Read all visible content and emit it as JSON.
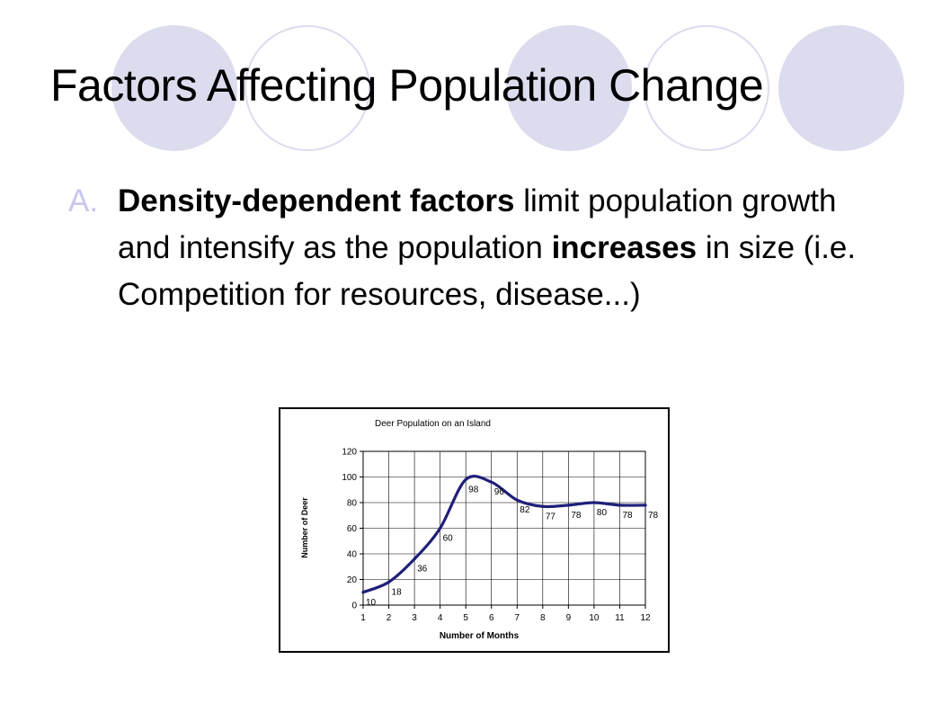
{
  "slide": {
    "title": "Factors Affecting Population Change",
    "bullet_marker": "A.",
    "bullet_bold_1": "Density-dependent factors",
    "bullet_text_1": " limit population growth and intensify as the population ",
    "bullet_bold_2": "increases",
    "bullet_text_2": " in size (i.e. Competition for resources, disease...)"
  },
  "colors": {
    "decoration": "#dcdcef",
    "bullet_marker": "#c8c8ee",
    "series_line": "#1f1f7a"
  },
  "chart_data": {
    "type": "line",
    "title": "Deer Population on an Island",
    "xlabel": "Number of Months",
    "ylabel": "Number of Deer",
    "x": [
      1,
      2,
      3,
      4,
      5,
      6,
      7,
      8,
      9,
      10,
      11,
      12
    ],
    "x_ticks": [
      "1",
      "2",
      "3",
      "4",
      "5",
      "6",
      "7",
      "8",
      "9",
      "10",
      "11",
      "12"
    ],
    "y_ticks": [
      "0",
      "20",
      "40",
      "60",
      "80",
      "100",
      "120"
    ],
    "xlim": [
      1,
      12
    ],
    "ylim": [
      0,
      120
    ],
    "grid": true,
    "series": [
      {
        "values": [
          10,
          18,
          36,
          60,
          98,
          96,
          82,
          77,
          78,
          80,
          78,
          78
        ],
        "labels": [
          "10",
          "18",
          "36",
          "60",
          "98",
          "96",
          "82",
          "77",
          "78",
          "80",
          "78",
          "78"
        ]
      }
    ]
  }
}
